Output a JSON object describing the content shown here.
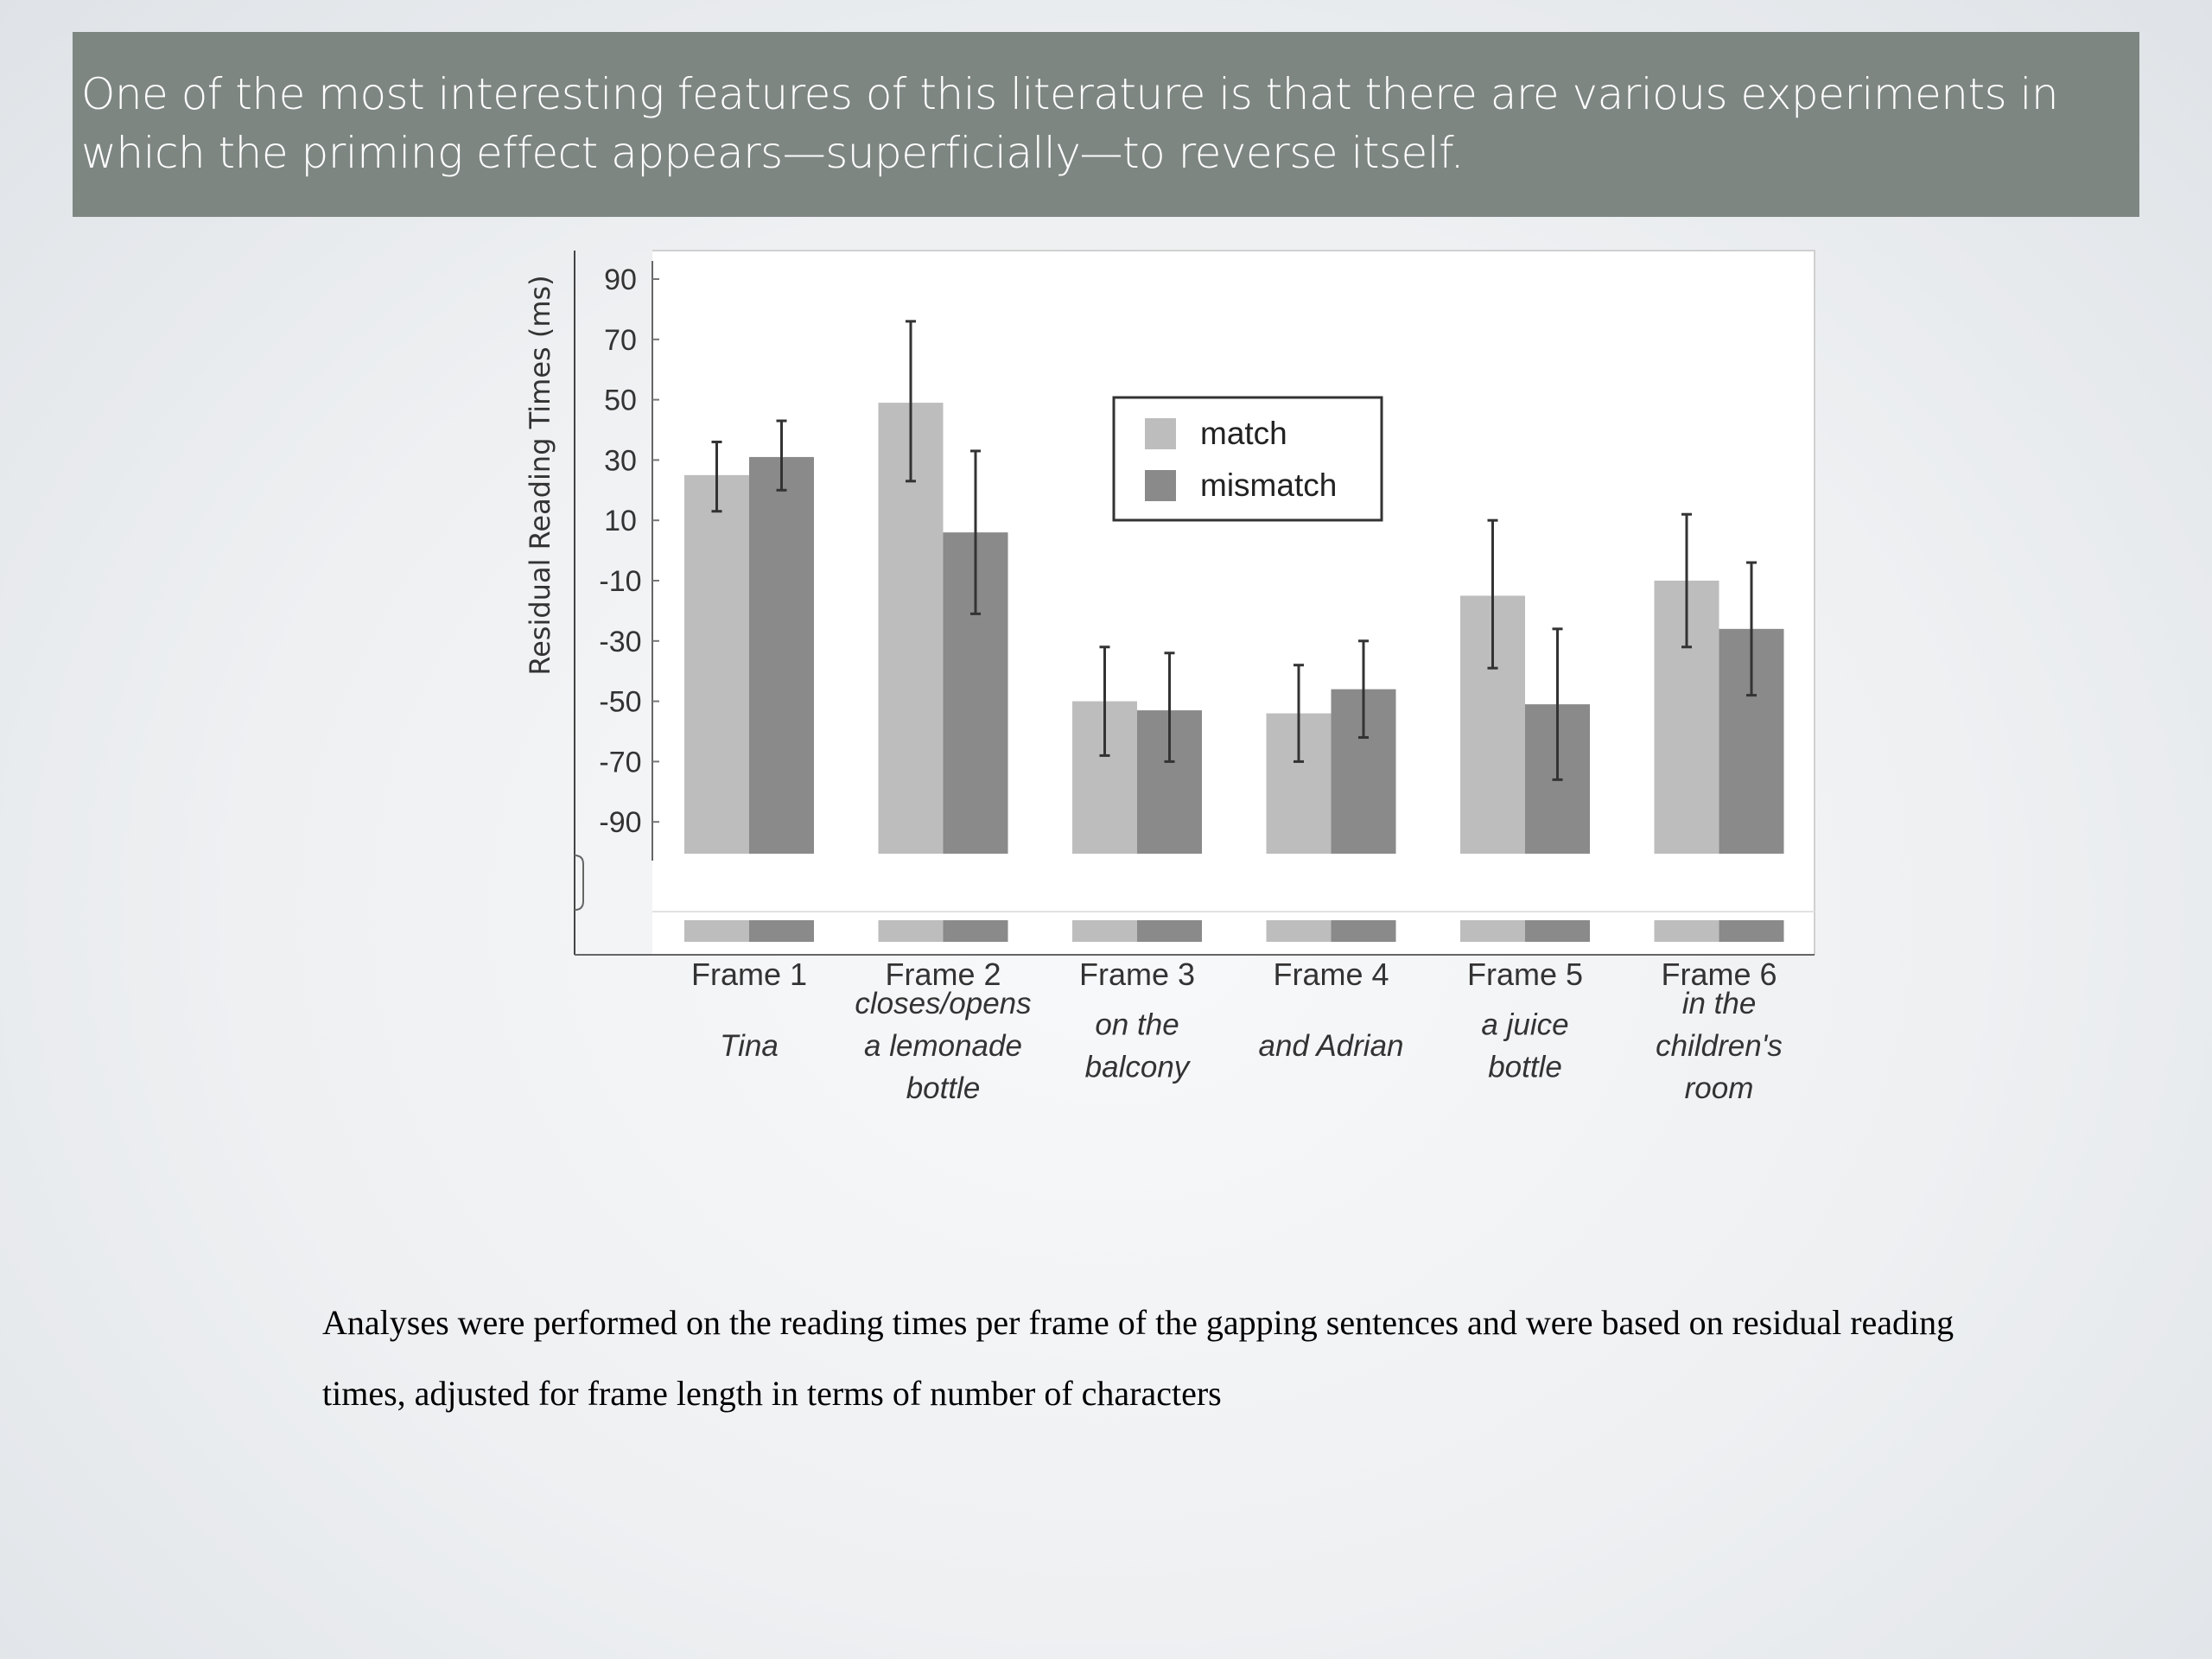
{
  "slide": {
    "title": "One of the most interesting features of this literature is that there are various experiments in which the priming effect appears—superficially—to reverse itself.",
    "caption": "Analyses were performed on the reading times per frame of the gapping sentences and were based on residual reading times, adjusted for frame length in terms of number of characters"
  },
  "colors": {
    "header_background": "#7e8682",
    "match": "#bdbdbd",
    "mismatch": "#8a8a8a"
  },
  "chart_data": {
    "type": "bar",
    "title": "",
    "xlabel": "",
    "ylabel": "Residual Reading Times (ms)",
    "ylim": [
      -100,
      90
    ],
    "yticks": [
      90,
      70,
      50,
      30,
      10,
      -10,
      -30,
      -50,
      -70,
      -90
    ],
    "axis_break": true,
    "grid": false,
    "legend": "inside-top-center",
    "categories": [
      "Frame 1",
      "Frame 2",
      "Frame 3",
      "Frame 4",
      "Frame 5",
      "Frame 6"
    ],
    "category_sublabels": [
      "Tina",
      "closes/opens a lemonade bottle",
      "on the balcony",
      "and Adrian",
      "a juice bottle",
      "in the children's room"
    ],
    "series": [
      {
        "name": "match",
        "values": [
          25,
          49,
          -50,
          -54,
          -15,
          -10
        ],
        "error_low": [
          13,
          23,
          -68,
          -70,
          -39,
          -32
        ],
        "error_high": [
          36,
          76,
          -32,
          -38,
          10,
          12
        ]
      },
      {
        "name": "mismatch",
        "values": [
          31,
          6,
          -53,
          -46,
          -51,
          -26
        ],
        "error_low": [
          20,
          -21,
          -70,
          -62,
          -76,
          -48
        ],
        "error_high": [
          43,
          33,
          -34,
          -30,
          -26,
          -4
        ]
      }
    ]
  }
}
